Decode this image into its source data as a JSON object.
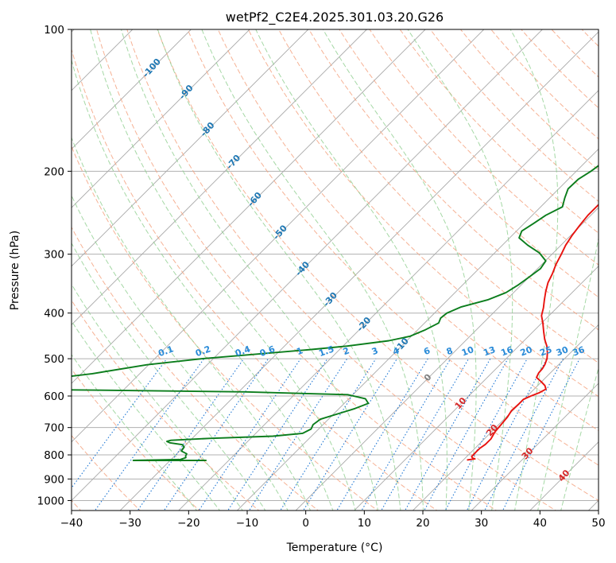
{
  "chart_data": {
    "type": "line",
    "title": "wetPf2_C2E4.2025.301.03.20.G26",
    "xlabel": "Temperature (°C)",
    "ylabel": "Pressure (hPa)",
    "xlim": [
      -40,
      50
    ],
    "ylim": [
      1050,
      100
    ],
    "y_scale": "log",
    "x_ticks": [
      "−40",
      "−30",
      "−20",
      "−10",
      "0",
      "10",
      "20",
      "30",
      "40",
      "50"
    ],
    "x_tick_values": [
      -40,
      -30,
      -20,
      -10,
      0,
      10,
      20,
      30,
      40,
      50
    ],
    "y_ticks": [
      "100",
      "200",
      "300",
      "400",
      "500",
      "600",
      "700",
      "800",
      "900",
      "1000"
    ],
    "y_tick_values": [
      100,
      200,
      300,
      400,
      500,
      600,
      700,
      800,
      900,
      1000
    ],
    "grid": true,
    "colors": {
      "temperature": "#e8120e",
      "dewpoint": "#0b7d1c",
      "isotherm": "#a9a9a9",
      "dry_adiabat": "#f4a582",
      "moist_adiabat": "#8fce8f",
      "mixing_ratio": "#1f77d4",
      "label_blue": "#1f78b4",
      "label_red": "#d62728",
      "label_gray": "#808080"
    },
    "series": [
      {
        "color": "#e8120e",
        "pressure": [
          820,
          816,
          812,
          806,
          798,
          788,
          775,
          760,
          740,
          715,
          690,
          665,
          645,
          625,
          610,
          600,
          590,
          580,
          570,
          560,
          548,
          536,
          525,
          514,
          500,
          485,
          470,
          455,
          438,
          420,
          405,
          390,
          375,
          360,
          345,
          330,
          315,
          300,
          287,
          273,
          260,
          248,
          236,
          225,
          215,
          205,
          195,
          187,
          178,
          170,
          162,
          155,
          149,
          143,
          138,
          133,
          128,
          124,
          120,
          117,
          113,
          110,
          107,
          104,
          102,
          100
        ],
        "temperature": [
          20.6,
          21.8,
          21.2,
          20.8,
          20.8,
          20.8,
          20.8,
          21.1,
          21.1,
          20.6,
          20.4,
          20.2,
          19.8,
          19.9,
          19.9,
          20.6,
          21.5,
          22.0,
          21.2,
          20.0,
          18.4,
          18.0,
          17.9,
          17.6,
          17.0,
          16.0,
          14.8,
          13.3,
          11.8,
          10.2,
          8.7,
          7.7,
          6.5,
          5.3,
          4.2,
          3.4,
          2.4,
          1.6,
          0.8,
          0.2,
          -0.2,
          -0.5,
          -0.5,
          -0.3,
          0.3,
          1.3,
          2.2,
          3.4,
          4.7,
          5.8,
          6.5,
          7.1,
          8.2,
          9.2,
          10.2,
          11.2,
          12.4,
          13.8,
          15.4,
          16.7,
          17.2,
          16.8,
          16.7,
          16.5,
          16.3,
          16.3
        ]
      },
      {
        "color": "#0b7d1c",
        "pressure": [
          822,
          822,
          822,
          818,
          811,
          805,
          796,
          785,
          770,
          761,
          754,
          749,
          745,
          738,
          730,
          720,
          705,
          690,
          672,
          652,
          638,
          622,
          608,
          596,
          588,
          580,
          560,
          538,
          515,
          500,
          488,
          478,
          470,
          458,
          448,
          435,
          420,
          410,
          400,
          388,
          375,
          362,
          348,
          335,
          322,
          310,
          298,
          287,
          277,
          268,
          258,
          248,
          238,
          228,
          218,
          208,
          200,
          192,
          183,
          176,
          169,
          163,
          158,
          153,
          148,
          143,
          138,
          133,
          129,
          124,
          120,
          117,
          114,
          111,
          108,
          105,
          102,
          100
        ],
        "temperature": [
          -23.8,
          -29.4,
          -36.3,
          -28.4,
          -27.8,
          -28.1,
          -28.3,
          -29.7,
          -29.9,
          -30.6,
          -33.1,
          -33.8,
          -33.3,
          -27.1,
          -16.6,
          -12.0,
          -11.3,
          -11.7,
          -11.4,
          -9.0,
          -7.3,
          -5.9,
          -7.2,
          -10.9,
          -28.9,
          -70.6,
          -68.3,
          -58.1,
          -50.3,
          -41.9,
          -32.8,
          -24.8,
          -19.3,
          -13.1,
          -10.2,
          -8.8,
          -7.6,
          -8.1,
          -7.9,
          -6.5,
          -3.2,
          -1.3,
          -0.5,
          0.0,
          0.5,
          0.1,
          -2.4,
          -5.7,
          -8.4,
          -9.1,
          -8.4,
          -7.7,
          -6.3,
          -7.4,
          -8.4,
          -8.3,
          -7.5,
          -7.0,
          -6.8,
          -6.9,
          -6.6,
          -5.7,
          -5.5,
          -5.2,
          -5.3,
          -5.5,
          -5.1,
          -4.9,
          -4.9,
          -4.7,
          -4.3,
          -4.0,
          -3.1,
          -2.0,
          -0.6,
          0.7,
          1.9,
          2.3
        ]
      }
    ],
    "isotherm_labels": {
      "values": [
        -100,
        -90,
        -80,
        -70,
        -60,
        -50,
        -40,
        -30,
        -20,
        -10,
        0,
        10,
        20,
        30,
        40
      ],
      "text": [
        "-100",
        "-90",
        "-80",
        "-70",
        "-60",
        "-50",
        "-40",
        "-30",
        "-20",
        "-10",
        "0",
        "10",
        "20",
        "30",
        "40"
      ]
    },
    "mixing_ratio_labels": {
      "values": [
        0.1,
        0.2,
        0.4,
        0.6,
        1,
        1.5,
        2,
        3,
        4,
        6,
        8,
        10,
        13,
        16,
        20,
        25,
        30,
        36
      ],
      "text": [
        "0.1",
        "0.2",
        "0.4",
        "0.6",
        "1",
        "1.5",
        "2",
        "3",
        "4",
        "6",
        "8",
        "10",
        "13",
        "16",
        "20",
        "25",
        "30",
        "36"
      ]
    }
  }
}
